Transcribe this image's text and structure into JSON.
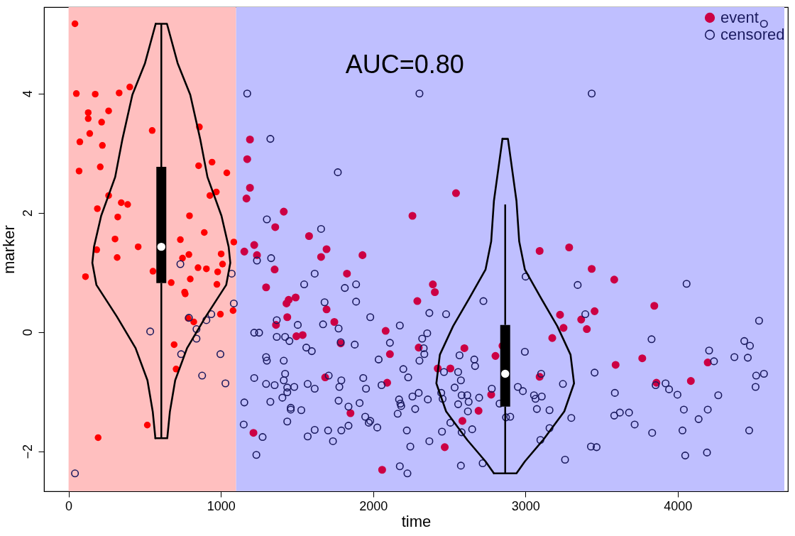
{
  "chart_data": {
    "type": "scatter",
    "xlabel": "time",
    "ylabel": "marker",
    "xlim": [
      -138,
      4700
    ],
    "ylim": [
      -2.67,
      5.45
    ],
    "xticks": [
      0,
      1000,
      2000,
      3000,
      4000
    ],
    "yticks": [
      -2,
      0,
      2,
      4
    ],
    "legend": "top right",
    "annotations": [
      "AUC=0.80"
    ],
    "bands": [
      {
        "axis": "x",
        "from": 0,
        "to": 1100,
        "color": "#ffbfbf"
      },
      {
        "axis": "x",
        "from": 1100,
        "to": 4700,
        "color": "#bfbfff"
      }
    ],
    "series": [
      {
        "color": "#ff0000",
        "x": [
          42,
          51,
          175,
          332,
          402,
          129,
          129,
          263,
          217,
          139,
          74,
          222,
          69,
          208,
          263,
          189,
          111,
          859,
          942,
          1039,
          970,
          928,
          1085,
          997,
          1080,
          517,
          194,
          549,
          854,
          346,
          388,
          323,
          794,
          891,
          305,
          185,
          319,
          457,
          734,
          790,
          748,
          1002,
          1011,
          554,
          850,
          905,
          979,
          799,
          674,
          974,
          762,
          766,
          785,
          822,
          693,
          706
        ],
        "values": [
          5.17,
          4.0,
          3.99,
          4.01,
          4.11,
          3.68,
          3.58,
          3.71,
          3.52,
          3.33,
          3.19,
          3.13,
          2.7,
          2.77,
          2.29,
          2.07,
          0.93,
          3.44,
          2.85,
          2.67,
          2.35,
          2.29,
          1.51,
          0.3,
          0.36,
          -1.56,
          -1.77,
          3.38,
          2.79,
          2.17,
          2.14,
          1.93,
          1.95,
          1.67,
          1.56,
          1.38,
          1.25,
          1.43,
          1.55,
          1.3,
          1.24,
          1.31,
          1.14,
          1.02,
          1.08,
          1.06,
          1.01,
          0.89,
          0.83,
          0.8,
          0.67,
          0.64,
          0.23,
          0.17,
          -0.21,
          -0.62
        ]
      },
      {
        "name": "event",
        "color": "#cc0044",
        "x": [
          1191,
          1173,
          1191,
          1168,
          1413,
          1357,
          1579,
          1219,
          1154,
          1237,
          1694,
          1658,
          1930,
          1353,
          1828,
          2258,
          2544,
          1297,
          1445,
          1431,
          1491,
          1436,
          1362,
          1694,
          1745,
          1496,
          1537,
          1787,
          1685,
          2082,
          2110,
          2092,
          1851,
          1214,
          2059,
          2290,
          2392,
          2405,
          2299,
          2424,
          2470,
          3093,
          3287,
          3435,
          3583,
          3227,
          3366,
          3454,
          3250,
          3403,
          3846,
          3592,
          3767,
          3860,
          4086,
          4197,
          2599,
          2507,
          2803,
          2775,
          2692,
          2586,
          2849,
          3176,
          3093
        ],
        "values": [
          3.23,
          2.9,
          2.42,
          2.24,
          2.02,
          1.76,
          1.61,
          1.46,
          1.35,
          1.29,
          1.39,
          1.26,
          1.29,
          1.05,
          0.98,
          1.95,
          2.33,
          0.75,
          0.54,
          0.48,
          0.58,
          0.25,
          0.12,
          0.38,
          0.17,
          -0.07,
          -0.05,
          -0.19,
          -0.76,
          0.02,
          -0.37,
          -0.85,
          -1.36,
          -1.69,
          -2.31,
          0.52,
          0.8,
          0.67,
          -0.26,
          -0.61,
          -1.93,
          1.36,
          1.42,
          1.06,
          0.88,
          0.29,
          0.21,
          0.35,
          0.07,
          0.05,
          0.44,
          -0.55,
          -0.44,
          -0.85,
          -0.82,
          -0.51,
          -0.27,
          -0.61,
          -0.4,
          -1.05,
          -1.32,
          -1.49,
          -0.23,
          -0.1,
          -0.75
        ]
      },
      {
        "name": "censored",
        "color": "#1a1a5e",
        "x": [
          42,
          734,
          536,
          790,
          905,
          937,
          840,
          840,
          739,
          997,
          877,
          1030,
          1085,
          1071,
          1173,
          2304,
          1325,
          1768,
          1302,
          1658,
          1330,
          1237,
          1616,
          1547,
          1814,
          1888,
          1681,
          1888,
          1981,
          1367,
          1505,
          1671,
          1773,
          2175,
          2369,
          2479,
          1219,
          1251,
          1367,
          1422,
          1450,
          1787,
          1879,
          2110,
          2355,
          2322,
          2332,
          2336,
          2304,
          1561,
          1597,
          1297,
          1302,
          1413,
          2036,
          2198,
          1422,
          1413,
          1219,
          1297,
          1353,
          1436,
          1482,
          1436,
          1404,
          1570,
          1616,
          1708,
          1791,
          1778,
          1935,
          1953,
          2055,
          2230,
          1154,
          1325,
          1459,
          1459,
          1528,
          1773,
          1838,
          1911,
          2170,
          2179,
          2184,
          2258,
          2299,
          2359,
          2276,
          2161,
          1150,
          1274,
          1436,
          1570,
          1616,
          1704,
          1791,
          1838,
          1948,
          1981,
          1971,
          2027,
          2221,
          2244,
          2369,
          2452,
          1233,
          1736,
          2175,
          2225,
          2576,
          2719,
          2724,
          2567,
          2664,
          2669,
          2558,
          2576,
          2535,
          2465,
          2447,
          2456,
          2581,
          2618,
          2627,
          2696,
          2779,
          2558,
          2622,
          2650,
          2581,
          2507,
          2830,
          2872,
          3001,
          2996,
          3103,
          3246,
          2950,
          2983,
          3056,
          3107,
          3066,
          3075,
          3158,
          2900,
          3158,
          3098,
          3343,
          3393,
          4058,
          4534,
          3828,
          4206,
          4238,
          4372,
          4437,
          4474,
          4460,
          4515,
          4566,
          4511,
          3454,
          3587,
          3855,
          3920,
          3943,
          3998,
          4266,
          4040,
          4197,
          4137,
          4031,
          4469,
          3301,
          3583,
          3620,
          3680,
          3717,
          3832,
          3430,
          3467,
          3260,
          4049,
          4192,
          3435,
          4566
        ],
        "values": [
          -2.37,
          1.14,
          0.01,
          0.24,
          0.2,
          0.3,
          0.05,
          -0.11,
          -0.37,
          -0.37,
          -0.73,
          -0.86,
          0.48,
          0.98,
          4.0,
          4.0,
          3.24,
          2.68,
          1.89,
          1.73,
          1.24,
          1.2,
          0.98,
          0.8,
          0.74,
          0.8,
          0.5,
          0.51,
          0.25,
          0.2,
          0.12,
          0.13,
          0.06,
          0.11,
          0.32,
          0.3,
          -0.01,
          -0.01,
          -0.08,
          -0.08,
          -0.15,
          -0.17,
          -0.21,
          -0.18,
          -0.02,
          -0.11,
          -0.27,
          -0.37,
          -0.48,
          -0.26,
          -0.32,
          -0.42,
          -0.48,
          -0.48,
          -0.46,
          -0.62,
          -0.7,
          -0.81,
          -0.77,
          -0.87,
          -0.89,
          -0.93,
          -0.92,
          -1.01,
          -1.1,
          -0.87,
          -0.95,
          -0.73,
          -0.81,
          -0.92,
          -0.77,
          -0.95,
          -0.89,
          -0.76,
          -1.18,
          -1.17,
          -1.27,
          -1.3,
          -1.31,
          -1.15,
          -1.25,
          -1.19,
          -1.13,
          -1.2,
          -1.24,
          -1.08,
          -1.02,
          -1.13,
          -1.29,
          -1.37,
          -1.55,
          -1.76,
          -1.5,
          -1.75,
          -1.64,
          -1.65,
          -1.65,
          -1.57,
          -1.42,
          -1.49,
          -1.52,
          -1.6,
          -1.65,
          -1.92,
          -1.83,
          -1.67,
          -2.06,
          -1.83,
          -2.25,
          -2.37,
          -2.24,
          -2.2,
          0.52,
          -0.39,
          -0.46,
          -0.57,
          -0.67,
          -0.81,
          -0.93,
          -0.67,
          -1.02,
          -1.12,
          -1.06,
          -1.06,
          -1.17,
          -1.1,
          -0.95,
          -1.21,
          -1.33,
          -1.63,
          -1.68,
          -1.52,
          -1.2,
          -1.43,
          0.93,
          -0.33,
          -0.7,
          -0.87,
          -0.92,
          -0.99,
          -1.06,
          -1.08,
          -1.12,
          -1.29,
          -1.31,
          -1.42,
          -1.61,
          -1.81,
          0.79,
          0.3,
          0.81,
          0.19,
          -0.12,
          -0.31,
          -0.49,
          -0.42,
          -0.15,
          -0.23,
          -0.43,
          -0.73,
          -0.7,
          -0.92,
          -0.68,
          -1.02,
          -0.89,
          -0.86,
          -0.96,
          -1.05,
          -1.06,
          -1.3,
          -1.3,
          -1.46,
          -1.65,
          -1.65,
          -1.44,
          -1.4,
          -1.35,
          -1.35,
          -1.55,
          -1.69,
          -1.92,
          -1.93,
          -2.14,
          -2.07,
          -2.02,
          4.0,
          5.17
        ]
      },
      {
        "type": "line",
        "color": "#000000",
        "x": [
          572,
          646,
          716,
          799,
          864,
          912,
          1004,
          1051,
          1062,
          1035,
          901,
          778,
          700,
          665,
          648,
          570
        ],
        "values": [
          5.17,
          5.17,
          4.51,
          3.98,
          3.24,
          2.6,
          1.95,
          1.43,
          1.16,
          0.79,
          0.26,
          -0.27,
          -0.81,
          -1.34,
          -1.78,
          -1.78
        ]
      },
      {
        "type": "line",
        "color": "#000000",
        "x": [
          572,
          502,
          419,
          354,
          306,
          214,
          167,
          156,
          183,
          317,
          440,
          518,
          553,
          570
        ],
        "values": [
          5.17,
          4.51,
          3.98,
          3.24,
          2.6,
          1.95,
          1.43,
          1.16,
          0.79,
          0.26,
          -0.27,
          -0.81,
          -1.34,
          -1.78
        ]
      },
      {
        "type": "line",
        "color": "#000000",
        "x": [
          2849,
          2885,
          2941,
          2959,
          2996,
          3102,
          3209,
          3296,
          3319,
          3255,
          3116,
          2996,
          2941,
          2793
        ],
        "values": [
          3.24,
          3.24,
          2.2,
          1.52,
          1.05,
          0.57,
          0.1,
          -0.38,
          -0.86,
          -1.33,
          -1.81,
          -2.17,
          -2.37,
          -2.37
        ]
      },
      {
        "type": "line",
        "color": "#000000",
        "x": [
          2849,
          2793,
          2775,
          2738,
          2632,
          2525,
          2438,
          2415,
          2479,
          2618,
          2738,
          2793
        ],
        "values": [
          3.24,
          2.2,
          1.52,
          1.05,
          0.57,
          0.1,
          -0.38,
          -0.86,
          -1.33,
          -1.81,
          -2.17,
          -2.37
        ]
      },
      {
        "type": "box",
        "color": "#000000",
        "x": [
          609,
          2867
        ],
        "boxes": [
          {
            "low": -1.77,
            "q1": 0.82,
            "median": 1.43,
            "q3": 2.77,
            "high": 5.17
          },
          {
            "low": -2.37,
            "q1": -1.25,
            "median": -0.7,
            "q3": 0.12,
            "high": 2.14
          }
        ]
      }
    ]
  }
}
